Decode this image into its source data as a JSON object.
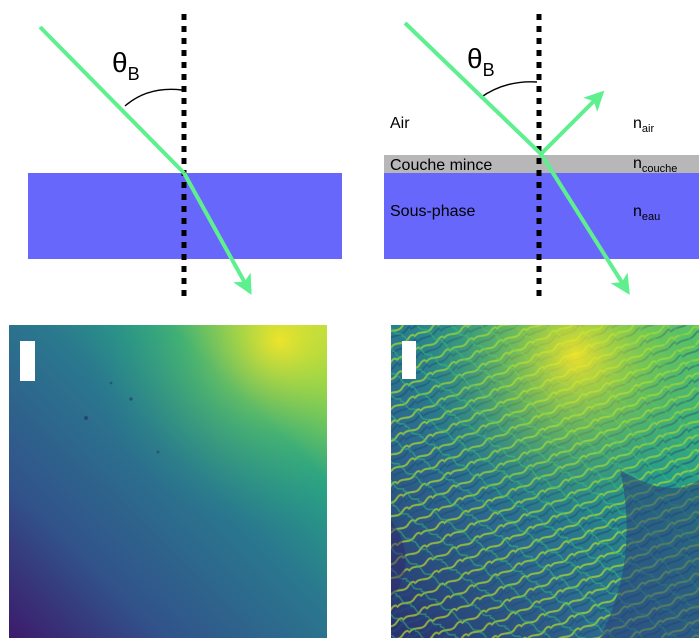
{
  "left_diagram": {
    "angle_label": "θ",
    "angle_subscript": "B"
  },
  "right_diagram": {
    "angle_label": "θ",
    "angle_subscript": "B",
    "layers": {
      "air": "Air",
      "film": "Couche mince",
      "subphase": "Sous-phase"
    },
    "indices": {
      "air": {
        "base": "n",
        "sub": "air"
      },
      "film": {
        "base": "n",
        "sub": "couche"
      },
      "water": {
        "base": "n",
        "sub": "eau"
      }
    }
  },
  "colors": {
    "beam": "#5ef08f",
    "water": "#6767fb",
    "film": "#b7b7b7",
    "normal_line": "#000000",
    "scale_bar": "#ffffff",
    "viridis_dark": "#440154",
    "viridis_mid": "#2a788e",
    "viridis_teal": "#22a884",
    "viridis_yellow": "#fde725"
  },
  "images": {
    "left": {
      "description_icon": "bam-image-uniform",
      "scale_bar": true
    },
    "right": {
      "description_icon": "bam-image-domains",
      "scale_bar": true
    }
  }
}
